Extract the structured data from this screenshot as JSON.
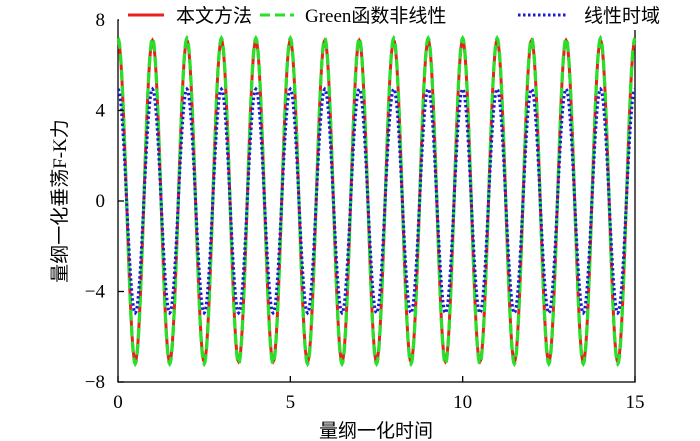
{
  "chart_data": {
    "type": "line",
    "xlabel": "量纲一化时间",
    "ylabel": "量纲一化垂荡F-K力",
    "xlim": [
      0,
      15
    ],
    "ylim": [
      -8,
      8
    ],
    "x_ticks": [
      "0",
      "5",
      "10",
      "15"
    ],
    "y_ticks": [
      "8",
      "4",
      "0",
      "−4",
      "−8"
    ],
    "legend_position": "top",
    "series": [
      {
        "name": "本文方法",
        "color": "#e8201e",
        "dash": "solid",
        "amplitude": 7.1,
        "period": 1.0,
        "phase": 1.5708,
        "sample_step": 0.02
      },
      {
        "name": "Green函数非线性",
        "color": "#27e027",
        "dash": "dashed",
        "amplitude": 7.2,
        "period": 1.0,
        "phase": 1.5708,
        "sample_step": 0.02
      },
      {
        "name": "线性时域",
        "color": "#1b1bd6",
        "dash": "dotted",
        "amplitude": 4.95,
        "period": 1.0,
        "phase": 1.5708,
        "sample_step": 0.02
      }
    ]
  }
}
